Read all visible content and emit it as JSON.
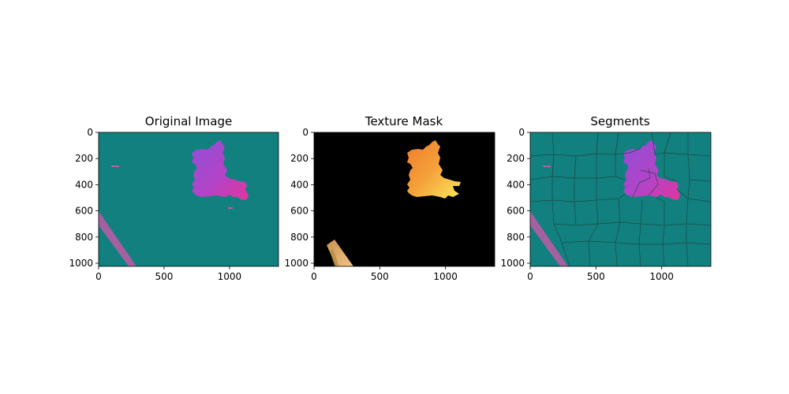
{
  "chart_data": [
    {
      "type": "image",
      "title": "Original Image",
      "x_ticks": [
        0,
        500,
        1000
      ],
      "y_ticks": [
        0,
        200,
        400,
        600,
        800,
        1000
      ],
      "xlim": [
        0,
        1374
      ],
      "ylim": [
        1024,
        0
      ],
      "colors": {
        "background": "#11807e",
        "texture_purple": "#a246d0",
        "texture_magenta": "#d43aa8",
        "strip": "#c05aa8"
      }
    },
    {
      "type": "image",
      "title": "Texture Mask",
      "x_ticks": [
        0,
        500,
        1000
      ],
      "y_ticks": [
        0,
        200,
        400,
        600,
        800,
        1000
      ],
      "xlim": [
        0,
        1374
      ],
      "ylim": [
        1024,
        0
      ],
      "colors": {
        "background": "#000000",
        "texture_orange": "#f28a2e",
        "texture_yellow": "#f7d84a",
        "strip": "#e8b070"
      }
    },
    {
      "type": "image",
      "title": "Segments",
      "x_ticks": [
        0,
        500,
        1000
      ],
      "y_ticks": [
        0,
        200,
        400,
        600,
        800,
        1000
      ],
      "xlim": [
        0,
        1374
      ],
      "ylim": [
        1024,
        0
      ],
      "colors": {
        "background": "#11807e",
        "boundary": "#1e4444",
        "texture_purple": "#a246d0",
        "texture_magenta": "#d43aa8",
        "strip": "#c05aa8"
      }
    }
  ]
}
